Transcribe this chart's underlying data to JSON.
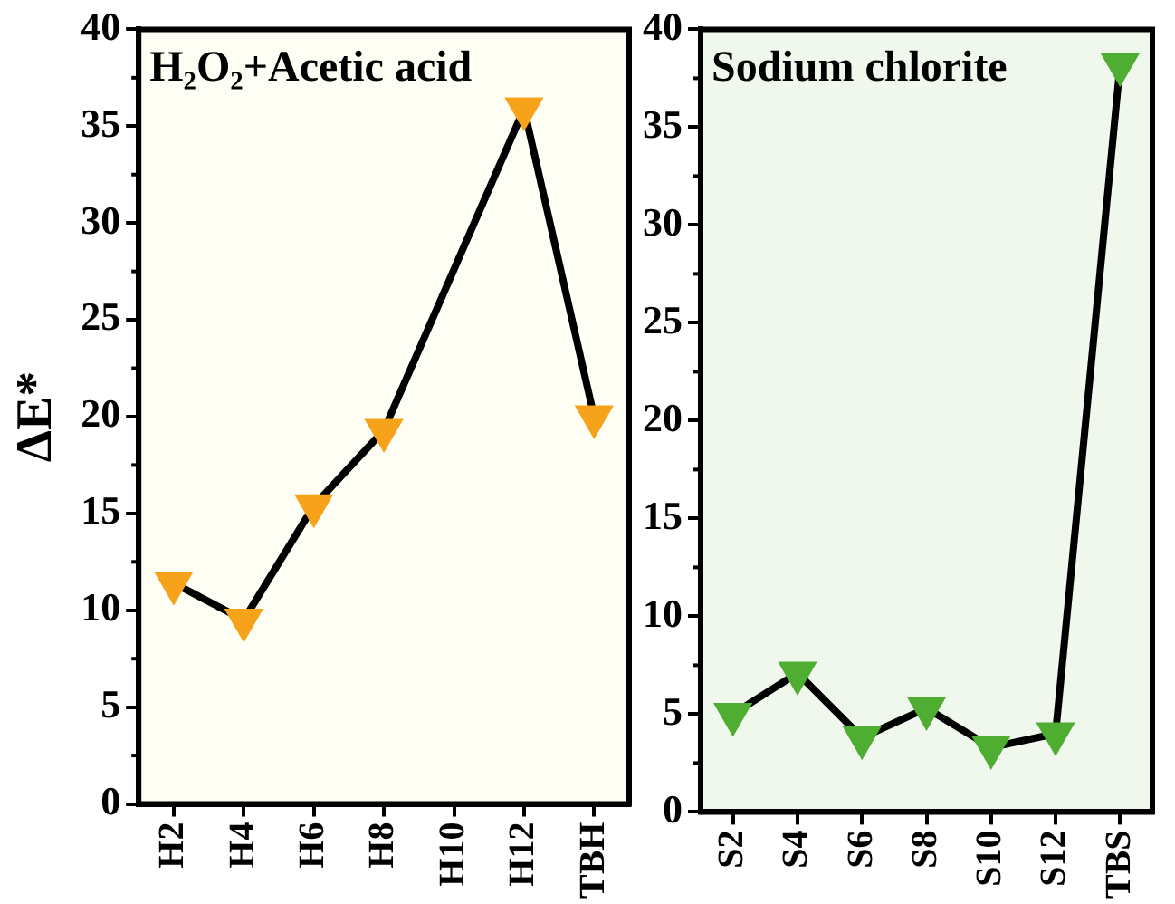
{
  "chart_data": [
    {
      "type": "line",
      "title": "H₂O₂+Acetic acid",
      "ylabel": "ΔE*",
      "categories": [
        "H2",
        "H4",
        "H6",
        "H8",
        "H10",
        "H12",
        "TBH"
      ],
      "series": [
        {
          "color": "#f7a21b",
          "values": [
            11.4,
            9.5,
            15.4,
            19.3,
            null,
            35.9,
            20.0
          ]
        }
      ],
      "ylim": [
        0,
        40
      ],
      "yticks": [
        0,
        5,
        10,
        15,
        20,
        25,
        30,
        35,
        40
      ],
      "marker": "triangle",
      "line_style": "solid",
      "legend": false
    },
    {
      "type": "line",
      "title": "Sodium chlorite",
      "categories": [
        "S2",
        "S4",
        "S6",
        "S8",
        "S10",
        "S12",
        "TBS"
      ],
      "series": [
        {
          "color": "#4fad32",
          "values": [
            5.0,
            7.1,
            3.8,
            5.3,
            3.3,
            4.0,
            38.2
          ]
        }
      ],
      "ylim": [
        0,
        40
      ],
      "yticks": [
        0,
        5,
        10,
        15,
        20,
        25,
        30,
        35,
        40
      ],
      "marker": "triangle",
      "line_style": "solid",
      "legend": false
    }
  ]
}
